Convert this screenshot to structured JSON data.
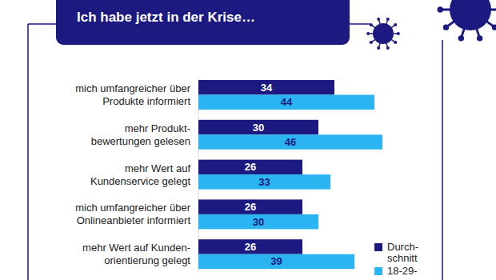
{
  "chart_data": {
    "type": "bar",
    "orientation": "horizontal",
    "title": "Ich habe jetzt in der Krise…",
    "categories": [
      "mich umfangreicher über\nProdukte informiert",
      "mehr Produkt-\nbewertungen gelesen",
      "mehr Wert auf\nKundenservice gelegt",
      "mich umfangreicher über\nOnlineanbieter informiert",
      "mehr Wert auf Kunden-\norientierung gelegt"
    ],
    "series": [
      {
        "name": "Durch-\nschnitt",
        "color": "#1c1a80",
        "values": [
          34,
          30,
          26,
          26,
          26
        ]
      },
      {
        "name": "18-29-",
        "color": "#2ab5f2",
        "values": [
          44,
          46,
          33,
          30,
          39
        ]
      }
    ],
    "xlim": [
      0,
      61
    ],
    "data_labels": true,
    "tick_labels": "y",
    "legend": "bottom-right",
    "grid": false
  }
}
